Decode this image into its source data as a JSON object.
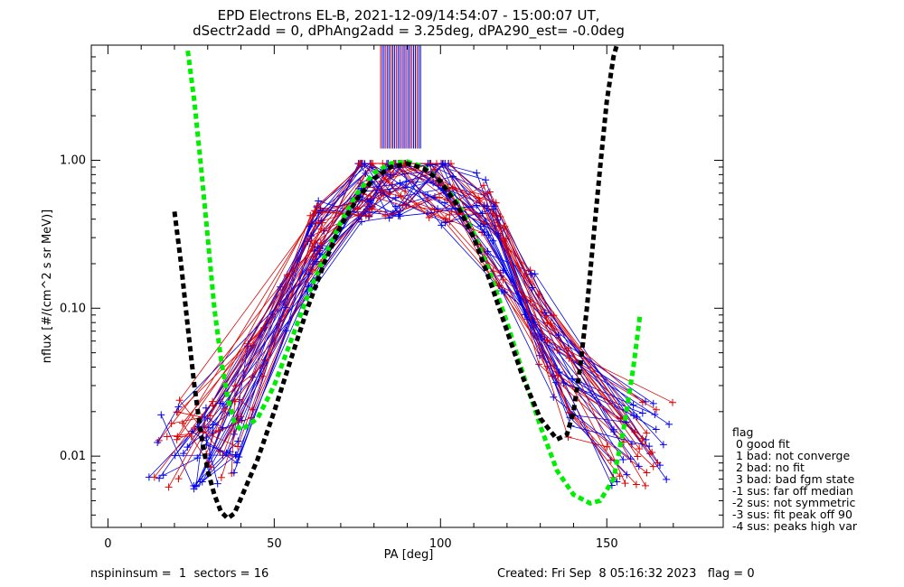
{
  "chart_data": {
    "type": "line",
    "title_line1": "EPD Electrons EL-B, 2021-12-09/14:54:07 - 15:00:07 UT,",
    "title_line2": "dSectr2add = 0, dPhAng2add = 3.25deg, dPA290_est=  -0.0deg",
    "xlabel": "PA [deg]",
    "ylabel": "nflux [#/(cm^2 s sr MeV)]",
    "xlim": [
      -5,
      185
    ],
    "ylim": [
      0.0033,
      6.0
    ],
    "yscale": "log",
    "x_ticks": [
      0,
      50,
      100,
      150
    ],
    "x_tick_labels": [
      "0",
      "50",
      "100",
      "150"
    ],
    "y_ticks": [
      0.01,
      0.1,
      1.0
    ],
    "y_tick_labels": [
      "0.01",
      "0.10",
      "1.00"
    ],
    "series_colors": {
      "red": "#dd0000",
      "blue": "#0000ee",
      "green": "#00ee00",
      "black": "#000000"
    },
    "fit_curves": [
      {
        "color": "green",
        "x": [
          24,
          26,
          28,
          30,
          32,
          34,
          36,
          38,
          40,
          45,
          50,
          55,
          60,
          65,
          70,
          75,
          80,
          85,
          90,
          95,
          100,
          105,
          110,
          115,
          120,
          125,
          130,
          135,
          140,
          145,
          148,
          152,
          155,
          158,
          160
        ],
        "y": [
          5.5,
          2.5,
          0.9,
          0.3,
          0.1,
          0.045,
          0.025,
          0.017,
          0.015,
          0.018,
          0.03,
          0.06,
          0.12,
          0.22,
          0.38,
          0.6,
          0.82,
          0.95,
          0.98,
          0.9,
          0.72,
          0.52,
          0.32,
          0.17,
          0.08,
          0.035,
          0.016,
          0.008,
          0.0055,
          0.0048,
          0.005,
          0.007,
          0.015,
          0.04,
          0.09
        ]
      },
      {
        "color": "black",
        "x": [
          20,
          22,
          24,
          26,
          28,
          30,
          32,
          34,
          36,
          38,
          40,
          45,
          50,
          55,
          60,
          65,
          70,
          75,
          80,
          85,
          90,
          95,
          100,
          105,
          110,
          115,
          120,
          125,
          130,
          135,
          138,
          140,
          142,
          144,
          146,
          148,
          150,
          152,
          153
        ],
        "y": [
          0.45,
          0.2,
          0.075,
          0.03,
          0.014,
          0.008,
          0.0055,
          0.0042,
          0.0038,
          0.0041,
          0.0052,
          0.0095,
          0.02,
          0.045,
          0.1,
          0.2,
          0.36,
          0.55,
          0.75,
          0.9,
          0.95,
          0.88,
          0.72,
          0.5,
          0.3,
          0.15,
          0.07,
          0.033,
          0.018,
          0.013,
          0.014,
          0.02,
          0.04,
          0.1,
          0.3,
          0.9,
          2.5,
          5.0,
          6.0
        ]
      }
    ],
    "flag_lines": {
      "x_range": [
        82,
        94
      ],
      "count": 24,
      "y_bottom": 1.2,
      "y_top": 6.0
    },
    "legend": {
      "placement": "right",
      "title": "flag",
      "entries": [
        " 0 good fit",
        " 1 bad: not converge",
        " 2 bad: no fit",
        " 3 bad: bad fgm state",
        "-1 sus: far off median",
        "-2 sus: not symmetric",
        "-3 sus: fit peak off 90",
        "-4 sus: peaks high var"
      ]
    }
  },
  "footer": {
    "left": "nspininsum =  1  sectors = 16",
    "right": "Created: Fri Sep  8 05:16:32 2023   flag = 0"
  }
}
